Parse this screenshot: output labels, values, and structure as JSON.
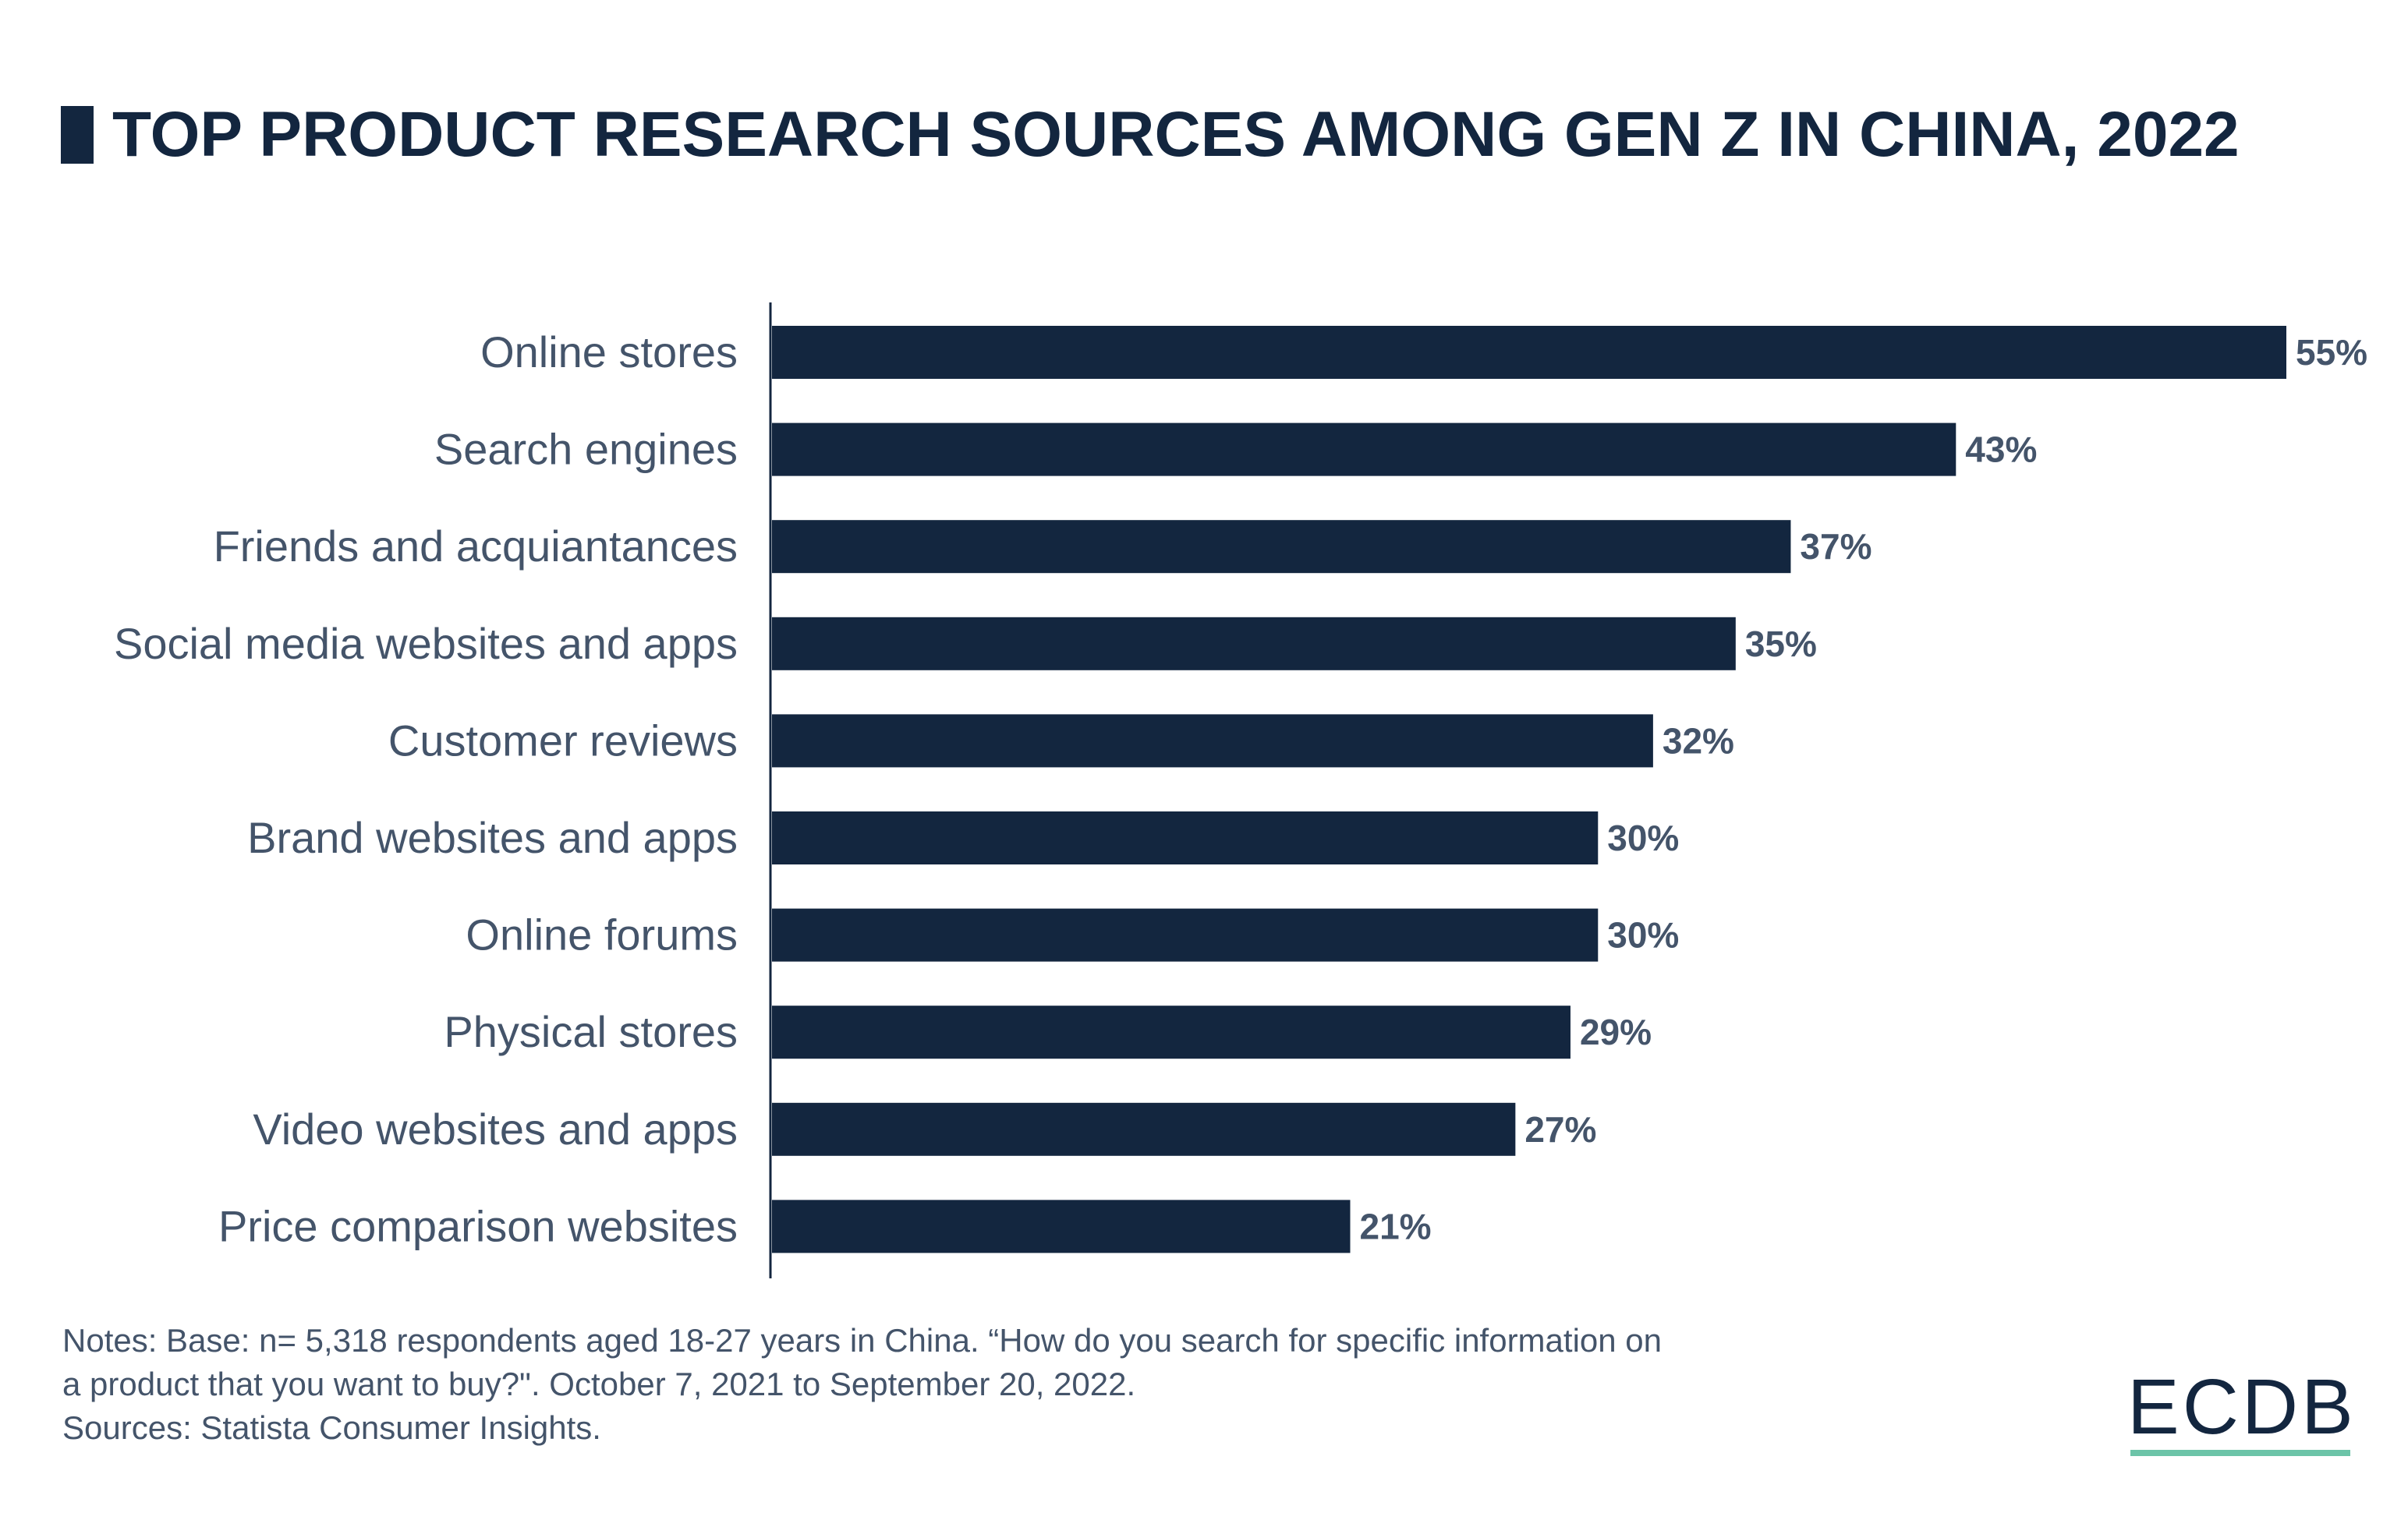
{
  "title": "TOP PRODUCT RESEARCH SOURCES AMONG GEN Z IN CHINA, 2022",
  "chart_data": {
    "type": "bar",
    "orientation": "horizontal",
    "title": "TOP PRODUCT RESEARCH SOURCES AMONG GEN Z IN CHINA, 2022",
    "categories": [
      "Online stores",
      "Search engines",
      "Friends and acquiantances",
      "Social media websites and apps",
      "Customer reviews",
      "Brand websites and apps",
      "Online forums",
      "Physical stores",
      "Video websites and apps",
      "Price comparison websites"
    ],
    "values": [
      55,
      43,
      37,
      35,
      32,
      30,
      30,
      29,
      27,
      21
    ],
    "value_labels": [
      "55%",
      "43%",
      "37%",
      "35%",
      "32%",
      "30%",
      "30%",
      "29%",
      "27%",
      "21%"
    ],
    "unit": "%",
    "xlim": [
      0,
      55
    ],
    "grid": false,
    "bar_color": "#13263f"
  },
  "notes": [
    "Notes: Base: n= 5,318 respondents aged 18-27 years in China. “How do you search for specific information on",
    "a product that you want to buy?\". October 7, 2021 to September 20, 2022.",
    "Sources: Statista Consumer Insights."
  ],
  "logo": "ECDB",
  "colors": {
    "primary": "#13263f",
    "text": "#44546a",
    "accent": "#6cc4a8"
  }
}
